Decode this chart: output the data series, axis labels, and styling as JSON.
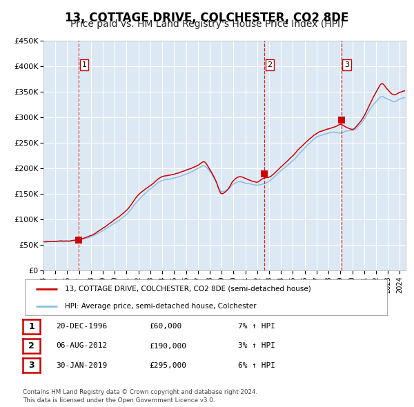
{
  "title": "13, COTTAGE DRIVE, COLCHESTER, CO2 8DE",
  "subtitle": "Price paid vs. HM Land Registry's House Price Index (HPI)",
  "title_fontsize": 12,
  "subtitle_fontsize": 10,
  "background_color": "#ffffff",
  "plot_bg_color": "#dce9f5",
  "grid_color": "#ffffff",
  "hpi_color": "#8bbde0",
  "price_color": "#cc0000",
  "sale_marker_color": "#cc0000",
  "dashed_line_color": "#cc0000",
  "sales": [
    {
      "date_num": 1996.97,
      "price": 60000,
      "label": "1"
    },
    {
      "date_num": 2012.59,
      "price": 190000,
      "label": "2"
    },
    {
      "date_num": 2019.08,
      "price": 295000,
      "label": "3"
    }
  ],
  "legend_entries": [
    "13, COTTAGE DRIVE, COLCHESTER, CO2 8DE (semi-detached house)",
    "HPI: Average price, semi-detached house, Colchester"
  ],
  "table_rows": [
    {
      "num": "1",
      "date": "20-DEC-1996",
      "price": "£60,000",
      "hpi": "7% ↑ HPI"
    },
    {
      "num": "2",
      "date": "06-AUG-2012",
      "price": "£190,000",
      "hpi": "3% ↑ HPI"
    },
    {
      "num": "3",
      "date": "30-JAN-2019",
      "price": "£295,000",
      "hpi": "6% ↑ HPI"
    }
  ],
  "footer": "Contains HM Land Registry data © Crown copyright and database right 2024.\nThis data is licensed under the Open Government Licence v3.0.",
  "xmin": 1994.0,
  "xmax": 2024.5,
  "ymin": 0,
  "ymax": 450000,
  "hpi_keypoints": [
    [
      1994.0,
      55000
    ],
    [
      1995.0,
      57000
    ],
    [
      1996.0,
      58000
    ],
    [
      1997.0,
      62000
    ],
    [
      1998.0,
      68000
    ],
    [
      1999.0,
      80000
    ],
    [
      2000.0,
      95000
    ],
    [
      2001.0,
      112000
    ],
    [
      2002.0,
      140000
    ],
    [
      2003.0,
      162000
    ],
    [
      2004.0,
      178000
    ],
    [
      2005.0,
      182000
    ],
    [
      2006.0,
      190000
    ],
    [
      2007.0,
      200000
    ],
    [
      2007.5,
      205000
    ],
    [
      2008.0,
      195000
    ],
    [
      2008.5,
      175000
    ],
    [
      2009.0,
      155000
    ],
    [
      2009.5,
      158000
    ],
    [
      2010.0,
      170000
    ],
    [
      2010.5,
      175000
    ],
    [
      2011.0,
      172000
    ],
    [
      2011.5,
      170000
    ],
    [
      2012.0,
      168000
    ],
    [
      2012.5,
      170000
    ],
    [
      2013.0,
      175000
    ],
    [
      2014.0,
      195000
    ],
    [
      2015.0,
      215000
    ],
    [
      2016.0,
      240000
    ],
    [
      2017.0,
      260000
    ],
    [
      2017.5,
      265000
    ],
    [
      2018.0,
      268000
    ],
    [
      2018.5,
      270000
    ],
    [
      2019.0,
      268000
    ],
    [
      2019.5,
      272000
    ],
    [
      2020.0,
      272000
    ],
    [
      2020.5,
      280000
    ],
    [
      2021.0,
      295000
    ],
    [
      2021.5,
      315000
    ],
    [
      2022.0,
      330000
    ],
    [
      2022.5,
      340000
    ],
    [
      2023.0,
      335000
    ],
    [
      2023.5,
      330000
    ],
    [
      2024.0,
      335000
    ],
    [
      2024.4,
      338000
    ]
  ],
  "price_keypoints": [
    [
      1994.0,
      57000
    ],
    [
      1995.0,
      58000
    ],
    [
      1996.0,
      59000
    ],
    [
      1997.0,
      62000
    ],
    [
      1998.0,
      70000
    ],
    [
      1999.0,
      84000
    ],
    [
      2000.0,
      100000
    ],
    [
      2001.0,
      118000
    ],
    [
      2002.0,
      148000
    ],
    [
      2003.0,
      168000
    ],
    [
      2004.0,
      185000
    ],
    [
      2005.0,
      190000
    ],
    [
      2006.0,
      198000
    ],
    [
      2007.0,
      208000
    ],
    [
      2007.5,
      215000
    ],
    [
      2008.0,
      200000
    ],
    [
      2008.5,
      178000
    ],
    [
      2009.0,
      152000
    ],
    [
      2009.5,
      160000
    ],
    [
      2010.0,
      178000
    ],
    [
      2010.5,
      185000
    ],
    [
      2011.0,
      182000
    ],
    [
      2011.5,
      178000
    ],
    [
      2012.0,
      175000
    ],
    [
      2012.5,
      182000
    ],
    [
      2013.0,
      185000
    ],
    [
      2014.0,
      205000
    ],
    [
      2015.0,
      228000
    ],
    [
      2016.0,
      252000
    ],
    [
      2017.0,
      272000
    ],
    [
      2017.5,
      278000
    ],
    [
      2018.0,
      282000
    ],
    [
      2018.5,
      285000
    ],
    [
      2019.0,
      290000
    ],
    [
      2019.5,
      285000
    ],
    [
      2020.0,
      282000
    ],
    [
      2020.5,
      292000
    ],
    [
      2021.0,
      308000
    ],
    [
      2021.5,
      332000
    ],
    [
      2022.0,
      355000
    ],
    [
      2022.5,
      372000
    ],
    [
      2023.0,
      360000
    ],
    [
      2023.5,
      350000
    ],
    [
      2024.0,
      355000
    ],
    [
      2024.4,
      358000
    ]
  ]
}
